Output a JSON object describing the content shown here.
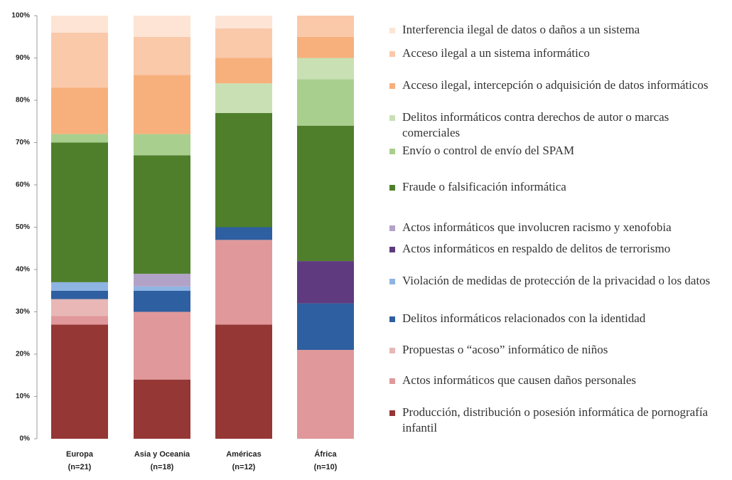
{
  "chart_data": {
    "type": "stacked_bar",
    "categories": [
      "Europa\n(n=21)",
      "Asia y Oceania\n(n=18)",
      "Américas\n(n=12)",
      "África\n(n=10)"
    ],
    "ylim": [
      0,
      100
    ],
    "yticks": [
      {
        "value": 0,
        "label": "0%"
      },
      {
        "value": 10,
        "label": "10%"
      },
      {
        "value": 20,
        "label": "20%"
      },
      {
        "value": 30,
        "label": "30%"
      },
      {
        "value": 40,
        "label": "40%"
      },
      {
        "value": 50,
        "label": "50%"
      },
      {
        "value": 60,
        "label": "60%"
      },
      {
        "value": 70,
        "label": "70%"
      },
      {
        "value": 80,
        "label": "80%"
      },
      {
        "value": 90,
        "label": "90%"
      },
      {
        "value": 100,
        "label": "100%"
      }
    ],
    "series": [
      {
        "name": "Producción, distribución o posesión informática de pornografía infantil",
        "color": "#953735",
        "values": [
          27,
          14,
          27,
          0
        ]
      },
      {
        "name": "Actos informáticos que causen daños personales",
        "color": "#e0989a",
        "values": [
          2,
          16,
          20,
          21
        ]
      },
      {
        "name": "Propuestas o “acoso” informático de niños",
        "color": "#e8b7b6",
        "values": [
          4,
          0,
          0,
          0
        ]
      },
      {
        "name": "Delitos informáticos relacionados con la identidad",
        "color": "#2e5fa0",
        "values": [
          2,
          5,
          3,
          11
        ]
      },
      {
        "name": "Violación de medidas de protección de la privacidad o los datos",
        "color": "#8eb4e3",
        "values": [
          2,
          1,
          0,
          0
        ]
      },
      {
        "name": "Actos informáticos en respaldo de delitos de terrorismo",
        "color": "#5f3a7e",
        "values": [
          0,
          0,
          0,
          10
        ]
      },
      {
        "name": "Actos informáticos que involucren racismo y xenofobia",
        "color": "#b3a2c7",
        "values": [
          0,
          3,
          0,
          0
        ]
      },
      {
        "name": "Fraude o falsificación informática",
        "color": "#4f7f2b",
        "values": [
          33,
          28,
          27,
          32
        ]
      },
      {
        "name": "Envío o control de envío del SPAM",
        "color": "#a9cf8e",
        "values": [
          2,
          5,
          0,
          11
        ]
      },
      {
        "name": "Delitos informáticos contra derechos de autor o marcas comerciales",
        "color": "#c9e0b4",
        "values": [
          0,
          0,
          7,
          5
        ]
      },
      {
        "name": "Acceso ilegal, intercepción o adquisición de datos informáticos",
        "color": "#f7b07c",
        "values": [
          11,
          14,
          6,
          5
        ]
      },
      {
        "name": "Acceso ilegal a un sistema informático",
        "color": "#fac9aa",
        "values": [
          13,
          9,
          7,
          5
        ]
      },
      {
        "name": "Interferencia ilegal de datos o daños a un sistema",
        "color": "#fde4d4",
        "values": [
          4,
          5,
          3,
          0
        ]
      }
    ]
  }
}
